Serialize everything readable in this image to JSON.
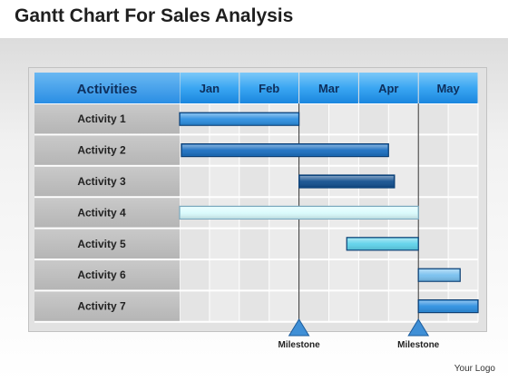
{
  "title": "Gantt Chart For Sales Analysis",
  "logo_text": "Your Logo",
  "chart_data": {
    "type": "gantt",
    "title": "Gantt Chart For Sales Analysis",
    "header_label": "Activities",
    "months": [
      "Jan",
      "Feb",
      "Mar",
      "Apr",
      "May"
    ],
    "tasks": [
      {
        "name": "Activity 1",
        "start": 0.0,
        "end": 2.0,
        "color": "#2d8fe0"
      },
      {
        "name": "Activity 2",
        "start": 0.03,
        "end": 3.5,
        "color": "#1b6fc0"
      },
      {
        "name": "Activity 3",
        "start": 2.0,
        "end": 3.6,
        "color": "#13508f"
      },
      {
        "name": "Activity 4",
        "start": 0.0,
        "end": 4.0,
        "color": "#d9fbfd"
      },
      {
        "name": "Activity 5",
        "start": 2.8,
        "end": 4.0,
        "color": "#5ed2ea"
      },
      {
        "name": "Activity 6",
        "start": 4.0,
        "end": 4.7,
        "color": "#78c0ef"
      },
      {
        "name": "Activity 7",
        "start": 4.0,
        "end": 5.0,
        "color": "#2d8fe0"
      }
    ],
    "milestones": [
      {
        "label": "Milestone",
        "at": 2.0
      },
      {
        "label": "Milestone",
        "at": 4.0
      }
    ],
    "colors": {
      "header_blue": "#3aa6f2",
      "label_column": "#bebebe",
      "milestone": "#3f8fd6"
    }
  }
}
